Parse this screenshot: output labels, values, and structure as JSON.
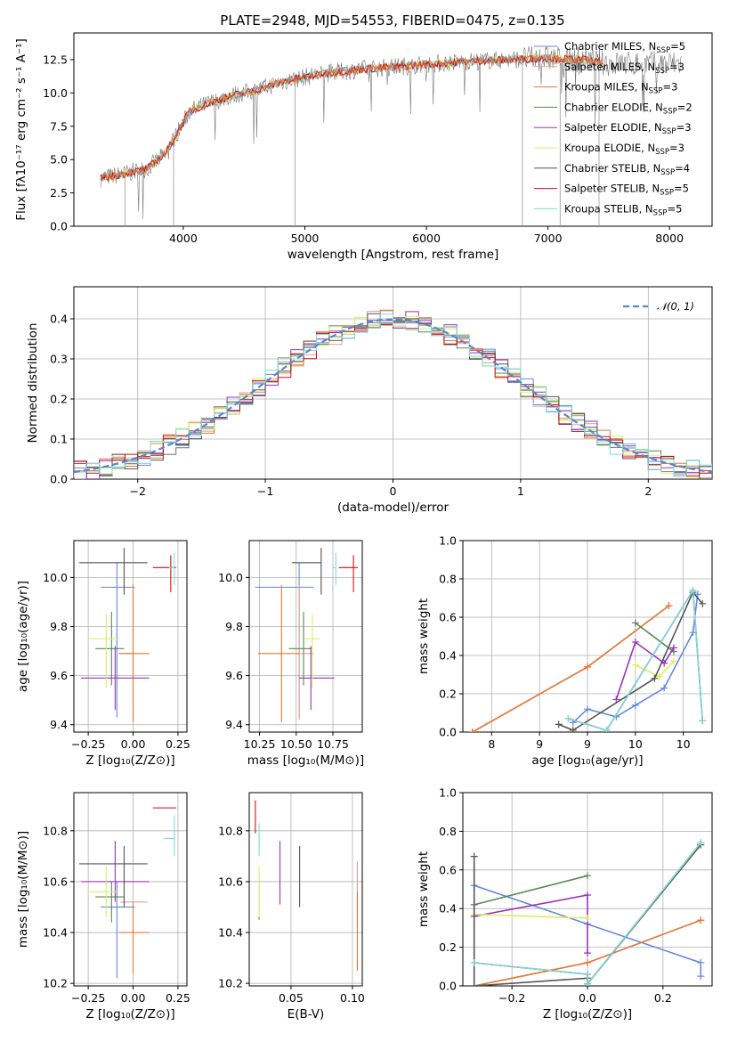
{
  "title": "PLATE=2948, MJD=54553, FIBERID=0475, z=0.135",
  "colors": {
    "Chabrier MILES": "#6688dd",
    "Salpeter MILES": "#ee9999",
    "Kroupa MILES": "#e07b39",
    "Chabrier ELODIE": "#558855",
    "Salpeter ELODIE": "#9933bb",
    "Kroupa ELODIE": "#ddee66",
    "Chabrier STELIB": "#555555",
    "Salpeter STELIB": "#cc1111",
    "Kroupa STELIB": "#77dddd",
    "data": "#777777",
    "normal": "#5588cc"
  },
  "chart_data": [
    {
      "id": "spectrum",
      "type": "line",
      "title": "PLATE=2948, MJD=54553, FIBERID=0475, z=0.135",
      "xlabel": "wavelength [Angstrom, rest frame]",
      "ylabel": "Flux [fλ10⁻¹⁷ erg cm⁻² s⁻¹ A⁻¹]",
      "xlim": [
        3100,
        8350
      ],
      "ylim": [
        0,
        14.5
      ],
      "xticks": [
        4000,
        5000,
        6000,
        7000,
        8000
      ],
      "yticks": [
        0.0,
        2.5,
        5.0,
        7.5,
        10.0,
        12.5
      ],
      "legend_position": "upper right",
      "continuum": {
        "x": [
          3320,
          3500,
          3700,
          3850,
          3950,
          4050,
          4200,
          4400,
          4600,
          4800,
          5000,
          5200,
          5500,
          5800,
          6100,
          6400,
          6700,
          7000,
          7300,
          7500
        ],
        "y": [
          3.6,
          3.9,
          4.3,
          5.4,
          7.0,
          8.6,
          9.2,
          9.8,
          10.2,
          10.8,
          11.2,
          11.5,
          11.8,
          12.0,
          12.2,
          12.4,
          12.5,
          12.6,
          12.5,
          12.2
        ]
      },
      "series": [
        {
          "name": "Chabrier MILES",
          "n_ssp": 5
        },
        {
          "name": "Salpeter MILES",
          "n_ssp": 3
        },
        {
          "name": "Kroupa MILES",
          "n_ssp": 3
        },
        {
          "name": "Chabrier ELODIE",
          "n_ssp": 2
        },
        {
          "name": "Salpeter ELODIE",
          "n_ssp": 3
        },
        {
          "name": "Kroupa ELODIE",
          "n_ssp": 3
        },
        {
          "name": "Chabrier STELIB",
          "n_ssp": 4
        },
        {
          "name": "Salpeter STELIB",
          "n_ssp": 5
        },
        {
          "name": "Kroupa STELIB",
          "n_ssp": 5
        }
      ],
      "legend_suffix": "N",
      "legend_sub": "SSP"
    },
    {
      "id": "residuals",
      "type": "histogram",
      "xlabel": "(data-model)/error",
      "ylabel": "Normed distribution",
      "xlim": [
        -2.5,
        2.5
      ],
      "ylim": [
        0,
        0.48
      ],
      "xticks": [
        -2,
        -1,
        0,
        1,
        2
      ],
      "yticks": [
        0.0,
        0.1,
        0.2,
        0.3,
        0.4
      ],
      "bin_width": 0.1,
      "reference_curve": "N(0,1)",
      "legend_label": "𝒩(0, 1)"
    },
    {
      "id": "age_Z",
      "type": "errorbar",
      "xlabel": "Z [log₁₀(Z/Z⊙)]",
      "ylabel": "age  [log₁₀(age/yr)]",
      "xlim": [
        -0.33,
        0.3
      ],
      "ylim": [
        9.37,
        10.15
      ],
      "xticks": [
        -0.25,
        0.0,
        0.25
      ],
      "xticklabels": [
        "−0.25",
        "0.00",
        "0.25"
      ],
      "yticks": [
        9.4,
        9.6,
        9.8,
        10.0
      ],
      "points": [
        {
          "model": "Chabrier MILES",
          "x": -0.09,
          "y": 9.96,
          "xerr": [
            0.09,
            0.1
          ],
          "yerr": [
            0.53,
            0.1
          ]
        },
        {
          "model": "Salpeter MILES",
          "x": 0.0,
          "y": 9.69,
          "xerr": [
            0.08,
            0.0
          ],
          "yerr": [
            0.27,
            0.28
          ]
        },
        {
          "model": "Kroupa MILES",
          "x": 0.0,
          "y": 9.69,
          "xerr": [
            0.08,
            0.09
          ],
          "yerr": [
            0.28,
            0.28
          ]
        },
        {
          "model": "Chabrier ELODIE",
          "x": -0.12,
          "y": 9.71,
          "xerr": [
            0.09,
            0.07
          ],
          "yerr": [
            0.15,
            0.15
          ]
        },
        {
          "model": "Salpeter ELODIE",
          "x": -0.1,
          "y": 9.59,
          "xerr": [
            0.19,
            0.19
          ],
          "yerr": [
            0.13,
            0.13
          ]
        },
        {
          "model": "Kroupa ELODIE",
          "x": -0.15,
          "y": 9.75,
          "xerr": [
            0.1,
            0.07
          ],
          "yerr": [
            0.2,
            0.1
          ]
        },
        {
          "model": "Chabrier STELIB",
          "x": -0.05,
          "y": 10.06,
          "xerr": [
            0.25,
            0.13
          ],
          "yerr": [
            0.13,
            0.06
          ]
        },
        {
          "model": "Salpeter STELIB",
          "x": 0.21,
          "y": 10.04,
          "xerr": [
            0.1,
            0.03
          ],
          "yerr": [
            0.1,
            0.05
          ]
        },
        {
          "model": "Kroupa STELIB",
          "x": 0.23,
          "y": 10.04,
          "xerr": [
            0.03,
            0.0
          ],
          "yerr": [
            0.07,
            0.06
          ]
        }
      ]
    },
    {
      "id": "age_mass",
      "type": "errorbar",
      "xlabel": "mass [log₁₀(M/M⊙)]",
      "ylabel": "",
      "xlim": [
        10.18,
        10.95
      ],
      "ylim": [
        9.37,
        10.15
      ],
      "xticks": [
        10.25,
        10.5,
        10.75
      ],
      "xticklabels": [
        "10.25",
        "10.50",
        "10.75"
      ],
      "yticks": [
        9.4,
        9.6,
        9.8,
        10.0
      ],
      "points": [
        {
          "model": "Chabrier MILES",
          "x": 10.52,
          "y": 9.96,
          "xerr": [
            0.3,
            0.1
          ],
          "yerr": [
            0.53,
            0.1
          ]
        },
        {
          "model": "Salpeter MILES",
          "x": 10.52,
          "y": 9.69,
          "xerr": [
            0.0,
            0.1
          ],
          "yerr": [
            0.27,
            0.28
          ]
        },
        {
          "model": "Kroupa MILES",
          "x": 10.4,
          "y": 9.69,
          "xerr": [
            0.16,
            0.12
          ],
          "yerr": [
            0.28,
            0.28
          ]
        },
        {
          "model": "Chabrier ELODIE",
          "x": 10.55,
          "y": 9.71,
          "xerr": [
            0.1,
            0.06
          ],
          "yerr": [
            0.15,
            0.15
          ]
        },
        {
          "model": "Salpeter ELODIE",
          "x": 10.6,
          "y": 9.59,
          "xerr": [
            0.08,
            0.16
          ],
          "yerr": [
            0.13,
            0.13
          ]
        },
        {
          "model": "Kroupa ELODIE",
          "x": 10.61,
          "y": 9.75,
          "xerr": [
            0.05,
            0.05
          ],
          "yerr": [
            0.2,
            0.1
          ]
        },
        {
          "model": "Chabrier STELIB",
          "x": 10.67,
          "y": 10.06,
          "xerr": [
            0.2,
            0.0
          ],
          "yerr": [
            0.13,
            0.06
          ]
        },
        {
          "model": "Salpeter STELIB",
          "x": 10.89,
          "y": 10.04,
          "xerr": [
            0.1,
            0.03
          ],
          "yerr": [
            0.1,
            0.05
          ]
        },
        {
          "model": "Kroupa STELIB",
          "x": 10.77,
          "y": 10.04,
          "xerr": [
            0.02,
            0.0
          ],
          "yerr": [
            0.07,
            0.06
          ]
        }
      ]
    },
    {
      "id": "massweight_age",
      "type": "line",
      "xlabel": "age  [log₁₀(age/yr)]",
      "ylabel": "mass weight",
      "xlim": [
        7.7,
        10.3
      ],
      "ylim": [
        0,
        1.0
      ],
      "xticks": [
        8.0,
        8.5,
        9.0,
        9.5,
        10.0
      ],
      "yticks": [
        0.0,
        0.2,
        0.4,
        0.6,
        0.8,
        1.0
      ],
      "series": [
        {
          "name": "Chabrier MILES",
          "x": [
            8.85,
            9.0,
            9.3,
            9.5,
            9.8,
            10.1,
            10.15
          ],
          "y": [
            0.05,
            0.12,
            0.08,
            0.14,
            0.23,
            0.52,
            0.72
          ]
        },
        {
          "name": "Salpeter MILES",
          "x": [
            7.8,
            9.0,
            9.85
          ],
          "y": [
            0.0,
            0.34,
            0.66
          ]
        },
        {
          "name": "Kroupa MILES",
          "x": [
            7.8,
            9.0,
            9.85
          ],
          "y": [
            0.0,
            0.34,
            0.66
          ]
        },
        {
          "name": "Chabrier ELODIE",
          "x": [
            9.5,
            9.9
          ],
          "y": [
            0.57,
            0.42
          ]
        },
        {
          "name": "Salpeter ELODIE",
          "x": [
            9.3,
            9.5,
            9.8,
            9.9
          ],
          "y": [
            0.17,
            0.47,
            0.36,
            0.44
          ]
        },
        {
          "name": "Kroupa ELODIE",
          "x": [
            9.5,
            9.75,
            9.9
          ],
          "y": [
            0.35,
            0.29,
            0.37
          ]
        },
        {
          "name": "Chabrier STELIB",
          "x": [
            8.7,
            8.85,
            9.7,
            10.1,
            10.2
          ],
          "y": [
            0.04,
            0.01,
            0.28,
            0.73,
            0.67
          ]
        },
        {
          "name": "Salpeter STELIB",
          "x": [
            8.8,
            9.2,
            10.1,
            10.2
          ],
          "y": [
            0.07,
            0.01,
            0.74,
            0.06
          ]
        },
        {
          "name": "Kroupa STELIB",
          "x": [
            8.8,
            9.2,
            10.1,
            10.2
          ],
          "y": [
            0.07,
            0.01,
            0.74,
            0.06
          ]
        }
      ]
    },
    {
      "id": "mass_Z",
      "type": "errorbar",
      "xlabel": "Z [log₁₀(Z/Z⊙)]",
      "ylabel": "mass [log₁₀(M/M⊙)]",
      "xlim": [
        -0.33,
        0.3
      ],
      "ylim": [
        10.19,
        10.95
      ],
      "xticks": [
        -0.25,
        0.0,
        0.25
      ],
      "xticklabels": [
        "−0.25",
        "0.00",
        "0.25"
      ],
      "yticks": [
        10.2,
        10.4,
        10.6,
        10.8
      ],
      "points": [
        {
          "model": "Chabrier MILES",
          "x": -0.09,
          "y": 10.5,
          "xerr": [
            0.09,
            0.1
          ],
          "yerr": [
            0.28,
            0.1
          ]
        },
        {
          "model": "Salpeter MILES",
          "x": 0.0,
          "y": 10.52,
          "xerr": [
            0.07,
            0.08
          ],
          "yerr": [
            0.0,
            0.0
          ]
        },
        {
          "model": "Kroupa MILES",
          "x": 0.0,
          "y": 10.4,
          "xerr": [
            0.08,
            0.09
          ],
          "yerr": [
            0.16,
            0.12
          ]
        },
        {
          "model": "Chabrier ELODIE",
          "x": -0.12,
          "y": 10.54,
          "xerr": [
            0.09,
            0.07
          ],
          "yerr": [
            0.1,
            0.06
          ]
        },
        {
          "model": "Salpeter ELODIE",
          "x": -0.1,
          "y": 10.6,
          "xerr": [
            0.19,
            0.19
          ],
          "yerr": [
            0.08,
            0.16
          ]
        },
        {
          "model": "Kroupa ELODIE",
          "x": -0.15,
          "y": 10.56,
          "xerr": [
            0.1,
            0.07
          ],
          "yerr": [
            0.1,
            0.1
          ]
        },
        {
          "model": "Chabrier STELIB",
          "x": -0.05,
          "y": 10.67,
          "xerr": [
            0.25,
            0.13
          ],
          "yerr": [
            0.17,
            0.07
          ]
        },
        {
          "model": "Salpeter STELIB",
          "x": 0.21,
          "y": 10.89,
          "xerr": [
            0.1,
            0.03
          ],
          "yerr": [
            0.0,
            0.0
          ]
        },
        {
          "model": "Kroupa STELIB",
          "x": 0.23,
          "y": 10.77,
          "xerr": [
            0.06,
            0.0
          ],
          "yerr": [
            0.07,
            0.09
          ]
        }
      ]
    },
    {
      "id": "mass_ebv",
      "type": "errorbar",
      "xlabel": "E(B-V)",
      "ylabel": "",
      "xlim": [
        0.016,
        0.108
      ],
      "ylim": [
        10.19,
        10.95
      ],
      "xticks": [
        0.05,
        0.1
      ],
      "xticklabels": [
        "0.05",
        "0.10"
      ],
      "yticks": [
        10.2,
        10.4,
        10.6,
        10.8
      ],
      "points": [
        {
          "model": "Chabrier MILES",
          "x": 0.104,
          "y": 10.55,
          "xerr": [
            0,
            0
          ],
          "yerr": [
            0.3,
            0.0
          ]
        },
        {
          "model": "Salpeter MILES",
          "x": 0.104,
          "y": 10.52,
          "xerr": [
            0,
            0
          ],
          "yerr": [
            0.07,
            0.16
          ]
        },
        {
          "model": "Kroupa MILES",
          "x": 0.104,
          "y": 10.4,
          "xerr": [
            0,
            0
          ],
          "yerr": [
            0.15,
            0.16
          ]
        },
        {
          "model": "Chabrier ELODIE",
          "x": 0.024,
          "y": 10.54,
          "xerr": [
            0,
            0
          ],
          "yerr": [
            0.09,
            0.07
          ]
        },
        {
          "model": "Salpeter ELODIE",
          "x": 0.041,
          "y": 10.6,
          "xerr": [
            0,
            0
          ],
          "yerr": [
            0.09,
            0.16
          ]
        },
        {
          "model": "Kroupa ELODIE",
          "x": 0.024,
          "y": 10.56,
          "xerr": [
            0,
            0
          ],
          "yerr": [
            0.1,
            0.1
          ]
        },
        {
          "model": "Chabrier STELIB",
          "x": 0.057,
          "y": 10.67,
          "xerr": [
            0,
            0
          ],
          "yerr": [
            0.17,
            0.07
          ]
        },
        {
          "model": "Salpeter STELIB",
          "x": 0.021,
          "y": 10.85,
          "xerr": [
            0,
            0
          ],
          "yerr": [
            0.06,
            0.07
          ]
        },
        {
          "model": "Kroupa STELIB",
          "x": 0.024,
          "y": 10.76,
          "xerr": [
            0,
            0
          ],
          "yerr": [
            0.06,
            0.07
          ]
        }
      ]
    },
    {
      "id": "massweight_Z",
      "type": "line",
      "xlabel": "Z [log₁₀(Z/Z⊙)]",
      "ylabel": "mass weight",
      "xlim": [
        -0.33,
        0.33
      ],
      "ylim": [
        0,
        1.0
      ],
      "xticks": [
        -0.2,
        0.0,
        0.2
      ],
      "xticklabels": [
        "−0.2",
        "0.0",
        "0.2"
      ],
      "yticks": [
        0.0,
        0.2,
        0.4,
        0.6,
        0.8,
        1.0
      ],
      "series": [
        {
          "name": "Chabrier MILES",
          "x": [
            -0.3,
            0.0,
            0.3,
            0.3
          ],
          "y": [
            0.52,
            0.32,
            0.12,
            0.05
          ]
        },
        {
          "name": "Salpeter MILES",
          "x": [
            -0.3,
            0.0,
            0.3
          ],
          "y": [
            0.0,
            0.12,
            0.34
          ]
        },
        {
          "name": "Kroupa MILES",
          "x": [
            -0.3,
            0.0,
            0.3
          ],
          "y": [
            0.0,
            0.12,
            0.34
          ]
        },
        {
          "name": "Chabrier ELODIE",
          "x": [
            -0.3,
            0.0
          ],
          "y": [
            0.42,
            0.57
          ]
        },
        {
          "name": "Salpeter ELODIE",
          "x": [
            -0.3,
            0.0,
            0.0
          ],
          "y": [
            0.36,
            0.47,
            0.17
          ]
        },
        {
          "name": "Kroupa ELODIE",
          "x": [
            -0.3,
            0.0
          ],
          "y": [
            0.37,
            0.35
          ]
        },
        {
          "name": "Chabrier STELIB",
          "x": [
            -0.3,
            -0.3,
            0.0,
            0.0,
            0.3
          ],
          "y": [
            0.67,
            0.0,
            0.04,
            0.01,
            0.73
          ]
        },
        {
          "name": "Salpeter STELIB",
          "x": [
            -0.3,
            0.0,
            0.0,
            0.3
          ],
          "y": [
            0.12,
            0.06,
            0.01,
            0.74
          ]
        },
        {
          "name": "Kroupa STELIB",
          "x": [
            -0.3,
            0.0,
            0.0,
            0.3
          ],
          "y": [
            0.12,
            0.06,
            0.01,
            0.74
          ]
        }
      ]
    }
  ]
}
